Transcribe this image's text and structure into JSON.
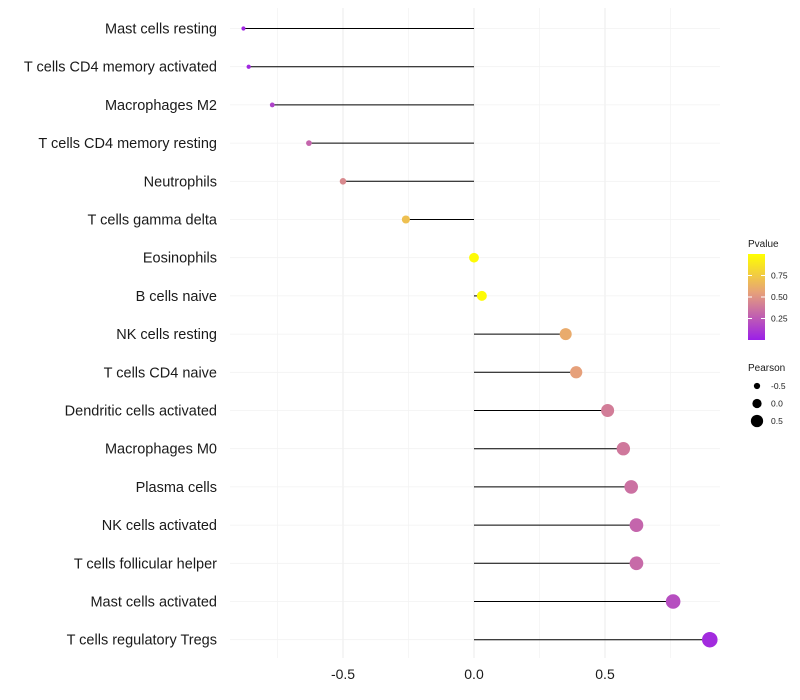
{
  "chart_data": {
    "type": "lollipop",
    "title": "",
    "xlabel": "",
    "ylabel": "",
    "xlim": [
      -0.88,
      0.9
    ],
    "x_ticks": [
      -0.5,
      0.0,
      0.5
    ],
    "x_tick_labels": [
      "-0.5",
      "0.0",
      "0.5"
    ],
    "grid": true,
    "categories": [
      "Mast cells resting",
      "T cells CD4 memory activated",
      "Macrophages M2",
      "T cells CD4 memory resting",
      "Neutrophils",
      "T cells gamma delta",
      "Eosinophils",
      "B cells naive",
      "NK cells resting",
      "T cells CD4 naive",
      "Dendritic cells activated",
      "Macrophages M0",
      "Plasma cells",
      "NK cells activated",
      "T cells follicular helper",
      "Mast cells activated",
      "T cells regulatory  Tregs"
    ],
    "pearson": [
      -0.88,
      -0.86,
      -0.77,
      -0.63,
      -0.5,
      -0.26,
      0.0,
      0.03,
      0.35,
      0.39,
      0.51,
      0.57,
      0.6,
      0.62,
      0.62,
      0.76,
      0.9
    ],
    "pvalue": [
      0.03,
      0.04,
      0.15,
      0.3,
      0.45,
      0.7,
      0.98,
      0.98,
      0.6,
      0.55,
      0.4,
      0.38,
      0.35,
      0.3,
      0.32,
      0.2,
      0.05
    ],
    "legend_color": {
      "title": "Pvalue",
      "ticks": [
        0.75,
        0.5,
        0.25
      ],
      "tick_labels": [
        "0.75",
        "0.50",
        "0.25"
      ],
      "low_color": "#9b1fe8",
      "mid_color": "#e6a07a",
      "high_color": "#ffff00"
    },
    "legend_size": {
      "title": "Pearson",
      "values": [
        -0.5,
        0.0,
        0.5
      ],
      "labels": [
        "-0.5",
        "0.0",
        "0.5"
      ]
    },
    "legend_position": "right"
  }
}
